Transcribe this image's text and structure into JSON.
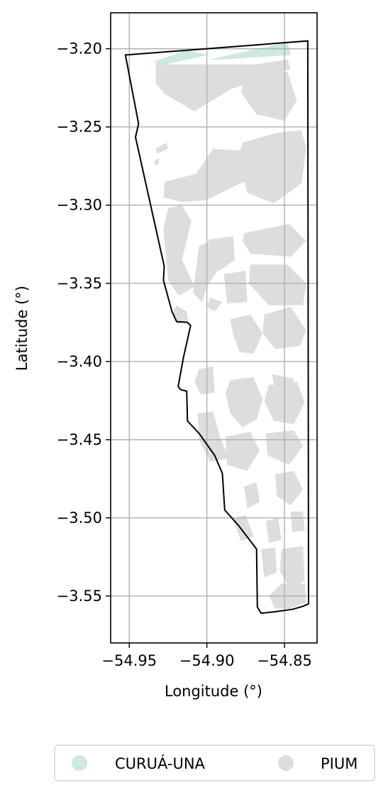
{
  "chart_data": {
    "type": "map",
    "xlabel": "Longitude (°)",
    "ylabel": "Latitude (°)",
    "xlim": [
      -54.962,
      -54.829
    ],
    "ylim": [
      -3.58,
      -3.177
    ],
    "grid": true,
    "x_ticks": [
      {
        "value": -54.95,
        "label": "−54.95"
      },
      {
        "value": -54.9,
        "label": "−54.90"
      },
      {
        "value": -54.85,
        "label": "−54.85"
      }
    ],
    "y_ticks": [
      {
        "value": -3.2,
        "label": "−3.20"
      },
      {
        "value": -3.25,
        "label": "−3.25"
      },
      {
        "value": -3.3,
        "label": "−3.30"
      },
      {
        "value": -3.35,
        "label": "−3.35"
      },
      {
        "value": -3.4,
        "label": "−3.40"
      },
      {
        "value": -3.45,
        "label": "−3.45"
      },
      {
        "value": -3.5,
        "label": "−3.50"
      },
      {
        "value": -3.55,
        "label": "−3.55"
      }
    ],
    "legend": {
      "placement": "bottom-center",
      "entries": [
        {
          "label": "CURUÁ-UNA",
          "color": "#cdeadc"
        },
        {
          "label": "PIUM",
          "color": "#dddddd"
        }
      ]
    },
    "boundary_outline": [
      [
        -54.9525,
        -3.204
      ],
      [
        -54.835,
        -3.195
      ],
      [
        -54.8345,
        -3.555
      ],
      [
        -54.838,
        -3.5565
      ],
      [
        -54.845,
        -3.5585
      ],
      [
        -54.856,
        -3.56
      ],
      [
        -54.865,
        -3.561
      ],
      [
        -54.8675,
        -3.557
      ],
      [
        -54.868,
        -3.52
      ],
      [
        -54.8795,
        -3.505
      ],
      [
        -54.8885,
        -3.495
      ],
      [
        -54.89,
        -3.4715
      ],
      [
        -54.895,
        -3.46
      ],
      [
        -54.905,
        -3.446
      ],
      [
        -54.9125,
        -3.438
      ],
      [
        -54.913,
        -3.419
      ],
      [
        -54.917,
        -3.418
      ],
      [
        -54.9185,
        -3.416
      ],
      [
        -54.915,
        -3.397
      ],
      [
        -54.9125,
        -3.386
      ],
      [
        -54.9105,
        -3.377
      ],
      [
        -54.9125,
        -3.375
      ],
      [
        -54.9195,
        -3.3745
      ],
      [
        -54.9225,
        -3.368
      ],
      [
        -54.928,
        -3.348
      ],
      [
        -54.9275,
        -3.339
      ],
      [
        -54.946,
        -3.2565
      ],
      [
        -54.944,
        -3.248
      ],
      [
        -54.9525,
        -3.204
      ]
    ],
    "curua_una_areas": [
      [
        [
          -54.934,
          -3.208
        ],
        [
          -54.913,
          -3.201
        ],
        [
          -54.899,
          -3.204
        ],
        [
          -54.931,
          -3.211
        ]
      ],
      [
        [
          -54.899,
          -3.207
        ],
        [
          -54.872,
          -3.201
        ],
        [
          -54.848,
          -3.196
        ],
        [
          -54.846,
          -3.204
        ],
        [
          -54.89,
          -3.207
        ]
      ]
    ],
    "pium_areas": [
      [
        [
          -54.933,
          -3.21
        ],
        [
          -54.869,
          -3.21
        ],
        [
          -54.848,
          -3.207
        ],
        [
          -54.846,
          -3.213
        ],
        [
          -54.885,
          -3.226
        ],
        [
          -54.908,
          -3.24
        ],
        [
          -54.927,
          -3.229
        ],
        [
          -54.933,
          -3.222
        ]
      ],
      [
        [
          -54.875,
          -3.214
        ],
        [
          -54.848,
          -3.215
        ],
        [
          -54.842,
          -3.233
        ],
        [
          -54.85,
          -3.246
        ],
        [
          -54.868,
          -3.242
        ],
        [
          -54.878,
          -3.228
        ]
      ],
      [
        [
          -54.933,
          -3.264
        ],
        [
          -54.926,
          -3.26
        ],
        [
          -54.925,
          -3.264
        ],
        [
          -54.932,
          -3.267
        ]
      ],
      [
        [
          -54.934,
          -3.272
        ],
        [
          -54.931,
          -3.27
        ],
        [
          -54.931,
          -3.274
        ],
        [
          -54.934,
          -3.2745
        ]
      ],
      [
        [
          -54.927,
          -3.285
        ],
        [
          -54.907,
          -3.28
        ],
        [
          -54.896,
          -3.264
        ],
        [
          -54.877,
          -3.265
        ],
        [
          -54.876,
          -3.285
        ],
        [
          -54.901,
          -3.297
        ],
        [
          -54.916,
          -3.298
        ],
        [
          -54.928,
          -3.295
        ]
      ],
      [
        [
          -54.877,
          -3.26
        ],
        [
          -54.856,
          -3.254
        ],
        [
          -54.839,
          -3.252
        ],
        [
          -54.836,
          -3.264
        ],
        [
          -54.839,
          -3.286
        ],
        [
          -54.857,
          -3.299
        ],
        [
          -54.874,
          -3.292
        ],
        [
          -54.88,
          -3.27
        ]
      ],
      [
        [
          -54.925,
          -3.302
        ],
        [
          -54.916,
          -3.3
        ],
        [
          -54.91,
          -3.31
        ],
        [
          -54.916,
          -3.335
        ],
        [
          -54.908,
          -3.352
        ],
        [
          -54.918,
          -3.358
        ],
        [
          -54.925,
          -3.348
        ],
        [
          -54.928,
          -3.315
        ]
      ],
      [
        [
          -54.876,
          -3.318
        ],
        [
          -54.847,
          -3.312
        ],
        [
          -54.836,
          -3.323
        ],
        [
          -54.846,
          -3.333
        ],
        [
          -54.872,
          -3.331
        ],
        [
          -54.877,
          -3.323
        ]
      ],
      [
        [
          -54.899,
          -3.322
        ],
        [
          -54.883,
          -3.32
        ],
        [
          -54.882,
          -3.335
        ],
        [
          -54.892,
          -3.342
        ],
        [
          -54.899,
          -3.336
        ]
      ],
      [
        [
          -54.905,
          -3.326
        ],
        [
          -54.896,
          -3.323
        ],
        [
          -54.892,
          -3.34
        ],
        [
          -54.9,
          -3.352
        ],
        [
          -54.903,
          -3.362
        ],
        [
          -54.909,
          -3.356
        ]
      ],
      [
        [
          -54.889,
          -3.344
        ],
        [
          -54.875,
          -3.342
        ],
        [
          -54.874,
          -3.362
        ],
        [
          -54.887,
          -3.363
        ]
      ],
      [
        [
          -54.872,
          -3.338
        ],
        [
          -54.848,
          -3.338
        ],
        [
          -54.836,
          -3.35
        ],
        [
          -54.838,
          -3.364
        ],
        [
          -54.86,
          -3.364
        ],
        [
          -54.873,
          -3.35
        ]
      ],
      [
        [
          -54.92,
          -3.364
        ],
        [
          -54.913,
          -3.368
        ],
        [
          -54.912,
          -3.375
        ],
        [
          -54.919,
          -3.376
        ],
        [
          -54.922,
          -3.37
        ]
      ],
      [
        [
          -54.898,
          -3.359
        ],
        [
          -54.89,
          -3.362
        ],
        [
          -54.895,
          -3.368
        ],
        [
          -54.9,
          -3.365
        ]
      ],
      [
        [
          -54.885,
          -3.373
        ],
        [
          -54.872,
          -3.37
        ],
        [
          -54.864,
          -3.382
        ],
        [
          -54.87,
          -3.395
        ],
        [
          -54.879,
          -3.394
        ],
        [
          -54.883,
          -3.383
        ]
      ],
      [
        [
          -54.863,
          -3.37
        ],
        [
          -54.846,
          -3.365
        ],
        [
          -54.836,
          -3.38
        ],
        [
          -54.84,
          -3.39
        ],
        [
          -54.856,
          -3.392
        ],
        [
          -54.864,
          -3.382
        ]
      ],
      [
        [
          -54.858,
          -3.408
        ],
        [
          -54.844,
          -3.411
        ],
        [
          -54.845,
          -3.417
        ],
        [
          -54.857,
          -3.414
        ]
      ],
      [
        [
          -54.905,
          -3.405
        ],
        [
          -54.896,
          -3.403
        ],
        [
          -54.895,
          -3.42
        ],
        [
          -54.904,
          -3.421
        ],
        [
          -54.908,
          -3.413
        ]
      ],
      [
        [
          -54.885,
          -3.412
        ],
        [
          -54.87,
          -3.41
        ],
        [
          -54.864,
          -3.424
        ],
        [
          -54.868,
          -3.437
        ],
        [
          -54.877,
          -3.442
        ],
        [
          -54.885,
          -3.433
        ],
        [
          -54.888,
          -3.42
        ]
      ],
      [
        [
          -54.86,
          -3.415
        ],
        [
          -54.842,
          -3.413
        ],
        [
          -54.837,
          -3.426
        ],
        [
          -54.844,
          -3.44
        ],
        [
          -54.857,
          -3.438
        ],
        [
          -54.863,
          -3.425
        ]
      ],
      [
        [
          -54.906,
          -3.433
        ],
        [
          -54.896,
          -3.432
        ],
        [
          -54.892,
          -3.447
        ],
        [
          -54.886,
          -3.462
        ],
        [
          -54.898,
          -3.464
        ],
        [
          -54.905,
          -3.45
        ]
      ],
      [
        [
          -54.888,
          -3.448
        ],
        [
          -54.872,
          -3.445
        ],
        [
          -54.866,
          -3.457
        ],
        [
          -54.874,
          -3.47
        ],
        [
          -54.887,
          -3.466
        ]
      ],
      [
        [
          -54.862,
          -3.446
        ],
        [
          -54.844,
          -3.444
        ],
        [
          -54.838,
          -3.454
        ],
        [
          -54.847,
          -3.466
        ],
        [
          -54.861,
          -3.46
        ]
      ],
      [
        [
          -54.876,
          -3.48
        ],
        [
          -54.868,
          -3.477
        ],
        [
          -54.866,
          -3.49
        ],
        [
          -54.874,
          -3.494
        ]
      ],
      [
        [
          -54.856,
          -3.472
        ],
        [
          -54.844,
          -3.47
        ],
        [
          -54.838,
          -3.482
        ],
        [
          -54.846,
          -3.492
        ],
        [
          -54.855,
          -3.486
        ]
      ],
      [
        [
          -54.883,
          -3.501
        ],
        [
          -54.875,
          -3.498
        ],
        [
          -54.87,
          -3.512
        ],
        [
          -54.878,
          -3.515
        ]
      ],
      [
        [
          -54.862,
          -3.502
        ],
        [
          -54.854,
          -3.5
        ],
        [
          -54.852,
          -3.514
        ],
        [
          -54.86,
          -3.516
        ]
      ],
      [
        [
          -54.846,
          -3.496
        ],
        [
          -54.838,
          -3.496
        ],
        [
          -54.837,
          -3.508
        ],
        [
          -54.845,
          -3.509
        ]
      ],
      [
        [
          -54.865,
          -3.52
        ],
        [
          -54.856,
          -3.519
        ],
        [
          -54.855,
          -3.535
        ],
        [
          -54.863,
          -3.538
        ]
      ],
      [
        [
          -54.852,
          -3.52
        ],
        [
          -54.838,
          -3.518
        ],
        [
          -54.837,
          -3.54
        ],
        [
          -54.846,
          -3.546
        ],
        [
          -54.853,
          -3.534
        ]
      ],
      [
        [
          -54.852,
          -3.542
        ],
        [
          -54.837,
          -3.542
        ],
        [
          -54.836,
          -3.554
        ],
        [
          -54.847,
          -3.558
        ],
        [
          -54.856,
          -3.558
        ],
        [
          -54.86,
          -3.55
        ]
      ]
    ]
  }
}
